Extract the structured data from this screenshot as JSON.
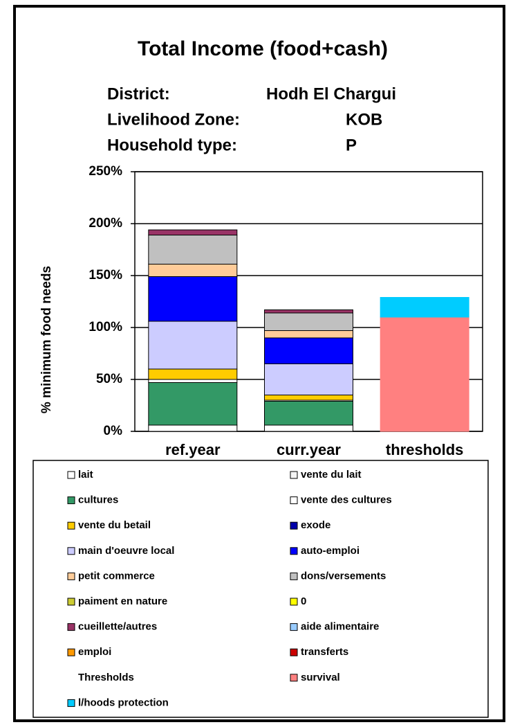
{
  "chart_data": {
    "type": "stacked_bar",
    "title": "Total Income (food+cash)",
    "info": [
      {
        "label": "District:",
        "value": "Hodh El Chargui"
      },
      {
        "label": "Livelihood Zone:",
        "value": "KOB"
      },
      {
        "label": "Household type:",
        "value": "P"
      }
    ],
    "y_axis_label": "% minimum food needs",
    "categories": [
      "ref.year",
      "curr.year",
      "thresholds"
    ],
    "ylim": [
      0,
      250
    ],
    "yticks": [
      {
        "value": 0,
        "label": "0%"
      },
      {
        "value": 50,
        "label": "50%"
      },
      {
        "value": 100,
        "label": "100%"
      },
      {
        "value": 150,
        "label": "150%"
      },
      {
        "value": 200,
        "label": "200%"
      },
      {
        "value": 250,
        "label": "250%"
      }
    ],
    "grid": true,
    "series": [
      {
        "name": "lait",
        "color": "#ffffff",
        "values": [
          6,
          6,
          0
        ]
      },
      {
        "name": "vente du lait",
        "color": "#f4f4f4",
        "values": [
          0,
          0,
          0
        ]
      },
      {
        "name": "cultures",
        "color": "#339966",
        "values": [
          41,
          23,
          0
        ]
      },
      {
        "name": "vente des cultures",
        "color": "#ffffff",
        "values": [
          3,
          1,
          0
        ]
      },
      {
        "name": "vente du betail",
        "color": "#ffcc00",
        "values": [
          10,
          5,
          0
        ]
      },
      {
        "name": "exode",
        "color": "#0000aa",
        "values": [
          0,
          0,
          0
        ]
      },
      {
        "name": "main d'oeuvre local",
        "color": "#ccccff",
        "values": [
          46,
          30,
          0
        ]
      },
      {
        "name": "auto-emploi",
        "color": "#0000ff",
        "values": [
          43,
          25,
          0
        ]
      },
      {
        "name": "petit commerce",
        "color": "#ffcc99",
        "values": [
          12,
          7,
          0
        ]
      },
      {
        "name": "dons/versements",
        "color": "#c0c0c0",
        "values": [
          28,
          17,
          0
        ]
      },
      {
        "name": "paiment en nature",
        "color": "#cccc33",
        "values": [
          0,
          0,
          0
        ]
      },
      {
        "name": "0",
        "color": "#ffff00",
        "values": [
          0,
          0,
          0
        ]
      },
      {
        "name": "cueillette/autres",
        "color": "#993366",
        "values": [
          5,
          3,
          0
        ]
      },
      {
        "name": "aide alimentaire",
        "color": "#99ccff",
        "values": [
          0,
          0,
          0
        ]
      },
      {
        "name": "emploi",
        "color": "#ff9900",
        "values": [
          0,
          0,
          0
        ]
      },
      {
        "name": "transferts",
        "color": "#cc0000",
        "values": [
          0,
          0,
          0
        ]
      },
      {
        "name": "Thresholds",
        "color": null,
        "values": [
          0,
          0,
          0
        ]
      },
      {
        "name": "survival",
        "color": "#ff8080",
        "values": [
          0,
          0,
          110
        ]
      },
      {
        "name": "l/hoods protection",
        "color": "#00ccff",
        "values": [
          0,
          0,
          19
        ]
      }
    ]
  }
}
